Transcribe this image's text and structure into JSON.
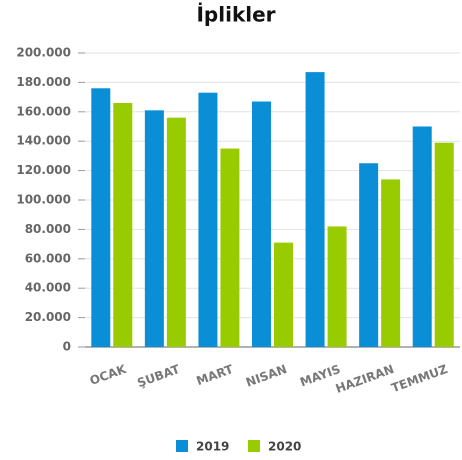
{
  "chart_data": {
    "type": "bar",
    "title": "İplikler",
    "categories": [
      "OCAK",
      "ŞUBAT",
      "MART",
      "NISAN",
      "MAYIS",
      "HAZIRAN",
      "TEMMUZ"
    ],
    "series": [
      {
        "name": "2019",
        "color": "#0a8fd6",
        "values": [
          176000,
          161000,
          173000,
          167000,
          187000,
          125000,
          150000
        ]
      },
      {
        "name": "2020",
        "color": "#99cc00",
        "values": [
          166000,
          156000,
          135000,
          71000,
          82000,
          114000,
          139000
        ]
      }
    ],
    "ylim": [
      0,
      200000
    ],
    "yticks": [
      {
        "value": 0,
        "label": "0"
      },
      {
        "value": 20000,
        "label": "20.000"
      },
      {
        "value": 40000,
        "label": "40.000"
      },
      {
        "value": 60000,
        "label": "60.000"
      },
      {
        "value": 80000,
        "label": "80.000"
      },
      {
        "value": 100000,
        "label": "100.000"
      },
      {
        "value": 120000,
        "label": "120.000"
      },
      {
        "value": 140000,
        "label": "140.000"
      },
      {
        "value": 160000,
        "label": "160.000"
      },
      {
        "value": 180000,
        "label": "180.000"
      },
      {
        "value": 200000,
        "label": "200.000"
      }
    ],
    "grid": true,
    "legend": "bottom"
  }
}
